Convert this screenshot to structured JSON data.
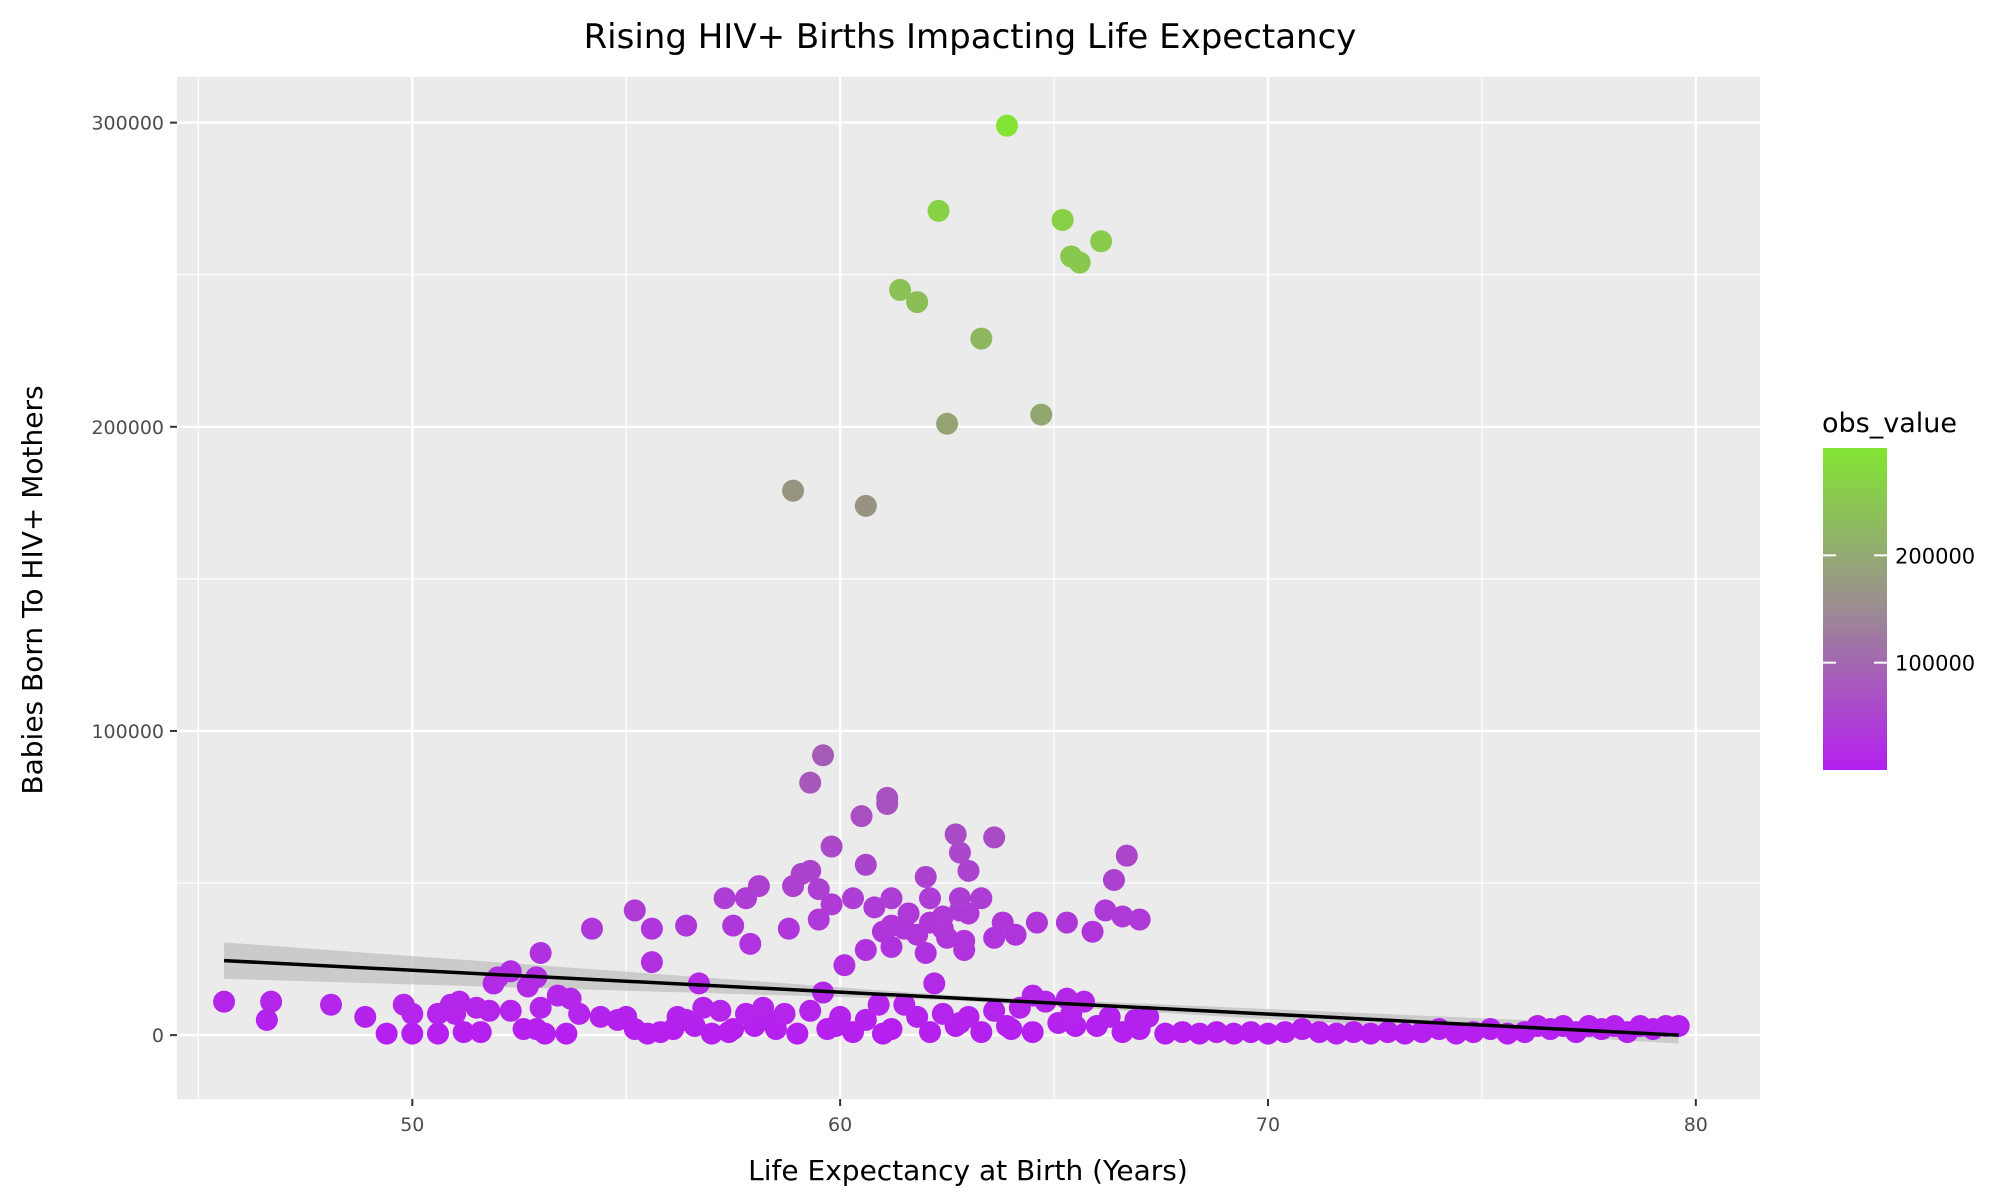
{
  "chart_data": {
    "type": "scatter",
    "title": "Rising HIV+ Births Impacting Life Expectancy",
    "xlabel": "Life Expectancy at Birth (Years)",
    "ylabel": "Babies Born To HIV+ Mothers",
    "xlim": [
      44.5,
      81.5
    ],
    "ylim": [
      -21000,
      315000
    ],
    "x_ticks": [
      50,
      60,
      70,
      80
    ],
    "x_tick_labels": [
      "50",
      "60",
      "70",
      "80"
    ],
    "y_ticks": [
      0,
      100000,
      200000,
      300000
    ],
    "y_tick_labels": [
      "0",
      "100000",
      "200000",
      "300000"
    ],
    "grid": true,
    "panel_background": "#ebebeb",
    "gridline_color": "#ffffff",
    "color_low": "#b51ff0",
    "color_high": "#82e532",
    "legend": {
      "title": "obs_value",
      "placement": "right",
      "value_range": [
        5,
        300000
      ],
      "tick_values": [
        100000,
        200000
      ],
      "tick_labels": [
        "100000",
        "200000"
      ]
    },
    "trend": {
      "type": "linear regression with confidence band",
      "color": "#000000",
      "band_color": "#bdbdbd",
      "x_range": [
        45.6,
        79.6
      ],
      "y_start": 24500,
      "y_end": 0,
      "band_halfwidth_start": 6000,
      "band_halfwidth_end": 2800,
      "band_halfwidth_mid": 800
    },
    "series": [
      {
        "points": [
          [
            63.9,
            299000
          ],
          [
            62.3,
            271000
          ],
          [
            65.2,
            268000
          ],
          [
            66.1,
            261000
          ],
          [
            65.4,
            256000
          ],
          [
            65.6,
            254000
          ],
          [
            61.4,
            245000
          ],
          [
            61.8,
            241000
          ],
          [
            63.3,
            229000
          ],
          [
            62.5,
            201000
          ],
          [
            64.7,
            204000
          ],
          [
            58.9,
            179000
          ],
          [
            60.6,
            174000
          ],
          [
            59.6,
            92000
          ],
          [
            59.3,
            83000
          ],
          [
            61.1,
            78000
          ],
          [
            61.1,
            76000
          ],
          [
            60.5,
            72000
          ],
          [
            62.7,
            66000
          ],
          [
            63.6,
            65000
          ],
          [
            59.8,
            62000
          ],
          [
            62.8,
            60000
          ],
          [
            66.7,
            59000
          ],
          [
            60.6,
            56000
          ],
          [
            63.0,
            54000
          ],
          [
            59.1,
            53000
          ],
          [
            59.3,
            54000
          ],
          [
            62.0,
            52000
          ],
          [
            66.4,
            51000
          ],
          [
            58.1,
            49000
          ],
          [
            58.9,
            49000
          ],
          [
            59.5,
            48000
          ],
          [
            55.2,
            41000
          ],
          [
            57.3,
            45000
          ],
          [
            57.8,
            45000
          ],
          [
            62.8,
            45000
          ],
          [
            63.3,
            45000
          ],
          [
            60.3,
            45000
          ],
          [
            61.2,
            45000
          ],
          [
            62.1,
            45000
          ],
          [
            59.8,
            43000
          ],
          [
            60.8,
            42000
          ],
          [
            62.8,
            41000
          ],
          [
            63.6,
            32000
          ],
          [
            64.6,
            37000
          ],
          [
            65.3,
            37000
          ],
          [
            66.2,
            41000
          ],
          [
            66.6,
            39000
          ],
          [
            67.0,
            38000
          ],
          [
            61.6,
            40000
          ],
          [
            62.4,
            39000
          ],
          [
            61.2,
            36000
          ],
          [
            62.1,
            37000
          ],
          [
            63.0,
            40000
          ],
          [
            61.5,
            35000
          ],
          [
            62.4,
            35000
          ],
          [
            63.8,
            37000
          ],
          [
            65.9,
            34000
          ],
          [
            54.2,
            35000
          ],
          [
            55.6,
            35000
          ],
          [
            56.4,
            36000
          ],
          [
            57.5,
            36000
          ],
          [
            58.8,
            35000
          ],
          [
            59.5,
            38000
          ],
          [
            61.0,
            34000
          ],
          [
            61.8,
            33000
          ],
          [
            62.5,
            32000
          ],
          [
            64.1,
            33000
          ],
          [
            57.9,
            30000
          ],
          [
            60.6,
            28000
          ],
          [
            61.2,
            29000
          ],
          [
            62.0,
            27000
          ],
          [
            62.9,
            28000
          ],
          [
            62.9,
            31000
          ],
          [
            55.6,
            24000
          ],
          [
            60.1,
            23000
          ],
          [
            53.0,
            27000
          ],
          [
            62.2,
            17000
          ],
          [
            56.7,
            17000
          ],
          [
            52.3,
            21000
          ],
          [
            51.9,
            17000
          ],
          [
            52.7,
            16000
          ],
          [
            53.4,
            13000
          ],
          [
            52.0,
            19000
          ],
          [
            52.9,
            19000
          ],
          [
            59.6,
            14000
          ],
          [
            64.5,
            13000
          ],
          [
            65.3,
            12000
          ],
          [
            45.6,
            11000
          ],
          [
            46.7,
            11000
          ],
          [
            46.6,
            5000
          ],
          [
            48.1,
            10000
          ],
          [
            48.9,
            6000
          ],
          [
            49.4,
            500
          ],
          [
            49.8,
            10000
          ],
          [
            50.0,
            7000
          ],
          [
            50.0,
            500
          ],
          [
            50.6,
            7000
          ],
          [
            50.6,
            500
          ],
          [
            50.9,
            10000
          ],
          [
            51.0,
            7000
          ],
          [
            51.1,
            11000
          ],
          [
            51.2,
            1000
          ],
          [
            51.5,
            9000
          ],
          [
            51.6,
            1000
          ],
          [
            51.8,
            8000
          ],
          [
            52.3,
            8000
          ],
          [
            52.6,
            2000
          ],
          [
            52.9,
            2000
          ],
          [
            53.0,
            9000
          ],
          [
            53.1,
            500
          ],
          [
            53.7,
            12000
          ],
          [
            53.6,
            500
          ],
          [
            53.9,
            7000
          ],
          [
            54.4,
            6000
          ],
          [
            54.8,
            5000
          ],
          [
            55.0,
            6000
          ],
          [
            55.2,
            2000
          ],
          [
            55.5,
            500
          ],
          [
            55.8,
            1000
          ],
          [
            56.1,
            2000
          ],
          [
            56.4,
            5000
          ],
          [
            56.6,
            3000
          ],
          [
            56.8,
            9000
          ],
          [
            57.0,
            500
          ],
          [
            57.2,
            8000
          ],
          [
            57.5,
            2000
          ],
          [
            57.8,
            7000
          ],
          [
            58.0,
            3000
          ],
          [
            58.2,
            9000
          ],
          [
            58.5,
            2000
          ],
          [
            58.7,
            7000
          ],
          [
            59.0,
            500
          ],
          [
            59.3,
            8000
          ],
          [
            59.7,
            2000
          ],
          [
            60.0,
            6000
          ],
          [
            60.3,
            1000
          ],
          [
            60.6,
            5000
          ],
          [
            60.9,
            10000
          ],
          [
            61.2,
            2000
          ],
          [
            61.5,
            10000
          ],
          [
            61.8,
            6000
          ],
          [
            62.1,
            1000
          ],
          [
            62.4,
            7000
          ],
          [
            62.7,
            3000
          ],
          [
            63.0,
            6000
          ],
          [
            63.3,
            1000
          ],
          [
            63.6,
            8000
          ],
          [
            63.9,
            3000
          ],
          [
            64.2,
            9000
          ],
          [
            64.5,
            1000
          ],
          [
            64.8,
            11000
          ],
          [
            65.1,
            4000
          ],
          [
            65.4,
            7000
          ],
          [
            65.7,
            11000
          ],
          [
            66.0,
            3000
          ],
          [
            66.3,
            6000
          ],
          [
            66.6,
            1000
          ],
          [
            66.9,
            5000
          ],
          [
            67.2,
            6000
          ],
          [
            67.6,
            500
          ],
          [
            68.0,
            1000
          ],
          [
            68.4,
            500
          ],
          [
            68.8,
            1000
          ],
          [
            69.2,
            500
          ],
          [
            69.6,
            1000
          ],
          [
            70.0,
            500
          ],
          [
            70.4,
            1000
          ],
          [
            70.8,
            2000
          ],
          [
            71.2,
            1000
          ],
          [
            71.6,
            500
          ],
          [
            72.0,
            1000
          ],
          [
            72.4,
            500
          ],
          [
            72.8,
            1000
          ],
          [
            73.2,
            500
          ],
          [
            73.6,
            1000
          ],
          [
            74.0,
            2000
          ],
          [
            74.4,
            500
          ],
          [
            74.8,
            1000
          ],
          [
            75.2,
            2000
          ],
          [
            75.6,
            500
          ],
          [
            76.0,
            1000
          ],
          [
            76.3,
            3000
          ],
          [
            76.6,
            2000
          ],
          [
            76.9,
            3000
          ],
          [
            77.2,
            1000
          ],
          [
            77.5,
            3000
          ],
          [
            77.8,
            2000
          ],
          [
            78.1,
            3000
          ],
          [
            78.4,
            1000
          ],
          [
            78.7,
            3000
          ],
          [
            79.0,
            2000
          ],
          [
            79.3,
            3000
          ],
          [
            79.6,
            3000
          ],
          [
            56.2,
            6000
          ],
          [
            57.4,
            1000
          ],
          [
            58.3,
            5000
          ],
          [
            59.9,
            3000
          ],
          [
            61.0,
            500
          ],
          [
            62.8,
            4000
          ],
          [
            64.0,
            2000
          ],
          [
            65.5,
            3000
          ],
          [
            67.0,
            2000
          ]
        ]
      }
    ]
  }
}
